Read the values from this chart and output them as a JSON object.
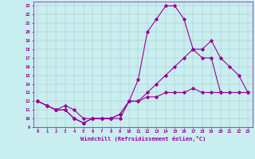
{
  "xlabel": "Windchill (Refroidissement éolien,°C)",
  "background_color": "#c8eef0",
  "line_color": "#990099",
  "grid_color": "#999999",
  "xlim": [
    -0.5,
    23.5
  ],
  "ylim": [
    9,
    23.5
  ],
  "xticks": [
    0,
    1,
    2,
    3,
    4,
    5,
    6,
    7,
    8,
    9,
    10,
    11,
    12,
    13,
    14,
    15,
    16,
    17,
    18,
    19,
    20,
    21,
    22,
    23
  ],
  "yticks": [
    9,
    10,
    11,
    12,
    13,
    14,
    15,
    16,
    17,
    18,
    19,
    20,
    21,
    22,
    23
  ],
  "line1_x": [
    0,
    1,
    2,
    3,
    4,
    5,
    6,
    7,
    8,
    9,
    10,
    11,
    12,
    13,
    14,
    15,
    16,
    17,
    18,
    19,
    20
  ],
  "line1_y": [
    12,
    11.5,
    11,
    11,
    10,
    9.5,
    10,
    10,
    10,
    10,
    12,
    14.5,
    20,
    21.5,
    23,
    23,
    21.5,
    18,
    17,
    17,
    13
  ],
  "line2_x": [
    0,
    1,
    2,
    3,
    4,
    5,
    6,
    7,
    8,
    9,
    10,
    11,
    12,
    13,
    14,
    15,
    16,
    17,
    18,
    19,
    20,
    21,
    22,
    23
  ],
  "line2_y": [
    12,
    11.5,
    11,
    11,
    10,
    9.5,
    10,
    10,
    10,
    10.5,
    12,
    12,
    13,
    14,
    15,
    16,
    17,
    18,
    18,
    19,
    17,
    16,
    15,
    13
  ],
  "line3_x": [
    0,
    1,
    2,
    3,
    4,
    5,
    6,
    7,
    8,
    9,
    10,
    11,
    12,
    13,
    14,
    15,
    16,
    17,
    18,
    19,
    20,
    21,
    22,
    23
  ],
  "line3_y": [
    12,
    11.5,
    11,
    11.5,
    11,
    10,
    10,
    10,
    10,
    10.5,
    12,
    12,
    12.5,
    12.5,
    13,
    13,
    13,
    13.5,
    13,
    13,
    13,
    13,
    13,
    13
  ]
}
